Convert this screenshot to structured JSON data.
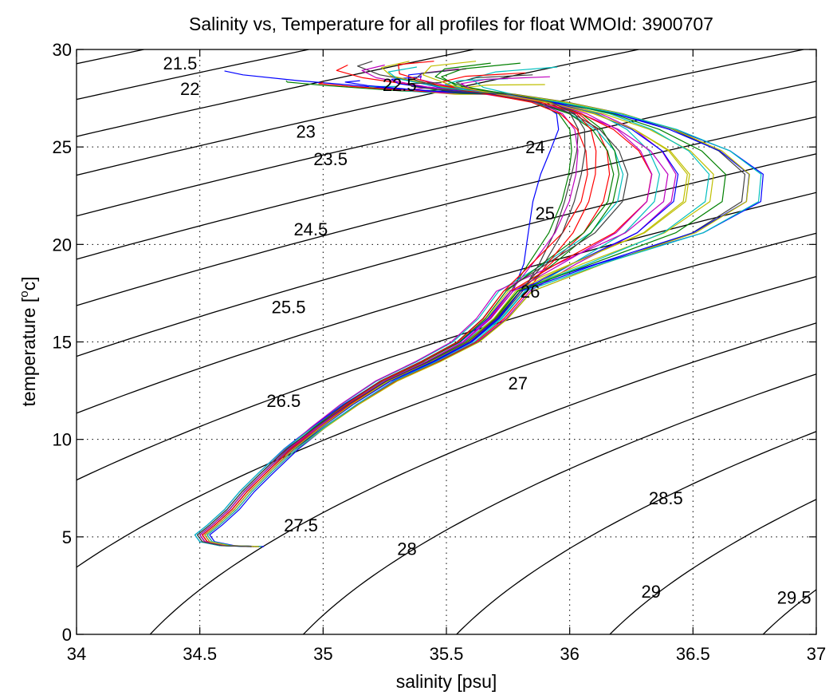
{
  "chart_data": {
    "type": "line",
    "title": "Salinity vs, Temperature for all profiles for float WMOId: 3900707",
    "xlabel": "salinity [psu]",
    "ylabel_main": "temperature [",
    "ylabel_sup": "o",
    "ylabel_end": "c]",
    "xlim": [
      34,
      37
    ],
    "ylim": [
      0,
      30
    ],
    "xticks": [
      34,
      34.5,
      35,
      35.5,
      36,
      36.5,
      37
    ],
    "xtick_labels": [
      "34",
      "34.5",
      "35",
      "35.5",
      "36",
      "36.5",
      "37"
    ],
    "yticks": [
      0,
      5,
      10,
      15,
      20,
      25,
      30
    ],
    "ytick_labels": [
      "0",
      "5",
      "10",
      "15",
      "20",
      "25",
      "30"
    ],
    "grid": true,
    "density_contour_labels": [
      {
        "text": "21.5",
        "s": 34.42,
        "t": 29.3
      },
      {
        "text": "22",
        "s": 34.46,
        "t": 28.0
      },
      {
        "text": "22.5",
        "s": 35.31,
        "t": 28.2
      },
      {
        "text": "23",
        "s": 34.93,
        "t": 25.8
      },
      {
        "text": "23.5",
        "s": 35.03,
        "t": 24.4
      },
      {
        "text": "24",
        "s": 35.86,
        "t": 25.0
      },
      {
        "text": "24.5",
        "s": 34.95,
        "t": 20.8
      },
      {
        "text": "25",
        "s": 35.9,
        "t": 21.6
      },
      {
        "text": "25.5",
        "s": 34.86,
        "t": 16.8
      },
      {
        "text": "26",
        "s": 35.84,
        "t": 17.6
      },
      {
        "text": "26.5",
        "s": 34.84,
        "t": 12.0
      },
      {
        "text": "27",
        "s": 35.79,
        "t": 12.9
      },
      {
        "text": "27.5",
        "s": 34.91,
        "t": 5.6
      },
      {
        "text": "28",
        "s": 35.34,
        "t": 4.4
      },
      {
        "text": "28.5",
        "s": 36.39,
        "t": 7.0
      },
      {
        "text": "29",
        "s": 36.33,
        "t": 2.2
      },
      {
        "text": "29.5",
        "s": 36.91,
        "t": 1.9
      }
    ],
    "profile_colors": [
      "#0000ff",
      "#008000",
      "#ff0000",
      "#00bfbf",
      "#bf00bf",
      "#bfbf00",
      "#404040"
    ],
    "profile_template": [
      [
        34.72,
        4.5
      ],
      [
        34.6,
        4.55
      ],
      [
        34.52,
        4.75
      ],
      [
        34.5,
        5.1
      ],
      [
        34.55,
        5.6
      ],
      [
        34.62,
        6.4
      ],
      [
        34.68,
        7.3
      ],
      [
        34.76,
        8.3
      ],
      [
        34.86,
        9.5
      ],
      [
        34.97,
        10.6
      ],
      [
        35.1,
        11.8
      ],
      [
        35.25,
        13.0
      ],
      [
        35.42,
        14.0
      ],
      [
        35.57,
        15.0
      ],
      [
        35.68,
        16.2
      ],
      [
        35.77,
        17.6
      ],
      [
        35.83,
        19.0
      ],
      [
        35.87,
        20.6
      ],
      [
        35.9,
        22.2
      ],
      [
        35.93,
        23.6
      ],
      [
        35.96,
        24.8
      ],
      [
        35.98,
        25.9
      ],
      [
        35.96,
        26.7
      ],
      [
        35.88,
        27.3
      ],
      [
        35.72,
        27.7
      ],
      [
        35.5,
        28.0
      ],
      [
        35.2,
        28.4
      ],
      [
        34.9,
        28.7
      ],
      [
        34.65,
        28.9
      ]
    ],
    "profiles": [
      {
        "dx_deep": 0.0,
        "dx_mid": 0.0,
        "dx_up": -0.05,
        "dt_top": 0.0,
        "top_s": 34.6
      },
      {
        "dx_deep": 0.02,
        "dx_mid": -0.03,
        "dx_up": 0.1,
        "dt_top": -0.5,
        "top_s": 34.85
      },
      {
        "dx_deep": 0.01,
        "dx_mid": 0.02,
        "dx_up": 0.22,
        "dt_top": 0.3,
        "top_s": 35.1
      },
      {
        "dx_deep": -0.01,
        "dx_mid": -0.05,
        "dx_up": 0.35,
        "dt_top": -0.8,
        "top_s": 35.3
      },
      {
        "dx_deep": 0.03,
        "dx_mid": 0.04,
        "dx_up": 0.48,
        "dt_top": 0.1,
        "top_s": 35.55
      },
      {
        "dx_deep": 0.0,
        "dx_mid": -0.02,
        "dx_up": 0.6,
        "dt_top": -1.2,
        "top_s": 35.7
      },
      {
        "dx_deep": 0.02,
        "dx_mid": 0.06,
        "dx_up": 0.75,
        "dt_top": 0.6,
        "top_s": 35.2
      },
      {
        "dx_deep": -0.02,
        "dx_mid": 0.01,
        "dx_up": 0.82,
        "dt_top": -0.3,
        "top_s": 35.4
      },
      {
        "dx_deep": 0.01,
        "dx_mid": -0.04,
        "dx_up": 0.3,
        "dt_top": 0.4,
        "top_s": 35.8
      },
      {
        "dx_deep": 0.03,
        "dx_mid": 0.03,
        "dx_up": 0.15,
        "dt_top": -0.6,
        "top_s": 35.0
      },
      {
        "dx_deep": 0.0,
        "dx_mid": 0.05,
        "dx_up": 0.4,
        "dt_top": 0.2,
        "top_s": 35.95
      },
      {
        "dx_deep": -0.01,
        "dx_mid": -0.06,
        "dx_up": 0.55,
        "dt_top": -0.9,
        "top_s": 35.6
      },
      {
        "dx_deep": 0.02,
        "dx_mid": 0.0,
        "dx_up": 0.68,
        "dt_top": 0.5,
        "top_s": 35.35
      },
      {
        "dx_deep": 0.01,
        "dx_mid": 0.03,
        "dx_up": 0.05,
        "dt_top": -0.2,
        "top_s": 35.85
      },
      {
        "dx_deep": 0.04,
        "dx_mid": -0.01,
        "dx_up": 0.9,
        "dt_top": 0.0,
        "top_s": 35.5
      },
      {
        "dx_deep": 0.0,
        "dx_mid": 0.02,
        "dx_up": 0.26,
        "dt_top": -1.0,
        "top_s": 35.65
      },
      {
        "dx_deep": 0.02,
        "dx_mid": -0.03,
        "dx_up": 0.45,
        "dt_top": 0.7,
        "top_s": 35.45
      },
      {
        "dx_deep": -0.02,
        "dx_mid": 0.04,
        "dx_up": 0.62,
        "dt_top": -0.4,
        "top_s": 35.75
      },
      {
        "dx_deep": 0.01,
        "dx_mid": -0.02,
        "dx_up": 0.12,
        "dt_top": 0.3,
        "top_s": 35.25
      },
      {
        "dx_deep": 0.03,
        "dx_mid": 0.05,
        "dx_up": 0.78,
        "dt_top": -0.7,
        "top_s": 35.9
      },
      {
        "dx_deep": 0.0,
        "dx_mid": -0.04,
        "dx_up": 0.36,
        "dt_top": 0.1,
        "top_s": 35.58
      },
      {
        "dx_deep": 0.02,
        "dx_mid": 0.01,
        "dx_up": 0.52,
        "dt_top": -0.5,
        "top_s": 35.15
      },
      {
        "dx_deep": -0.01,
        "dx_mid": 0.03,
        "dx_up": 0.7,
        "dt_top": 0.4,
        "top_s": 35.68
      },
      {
        "dx_deep": 0.01,
        "dx_mid": -0.05,
        "dx_up": 0.2,
        "dt_top": -0.1,
        "top_s": 35.82
      },
      {
        "dx_deep": 0.03,
        "dx_mid": 0.02,
        "dx_up": 0.86,
        "dt_top": 0.2,
        "top_s": 35.38
      },
      {
        "dx_deep": 0.0,
        "dx_mid": 0.0,
        "dx_up": 0.42,
        "dt_top": -0.3,
        "top_s": 35.92
      },
      {
        "dx_deep": 0.02,
        "dx_mid": -0.01,
        "dx_up": 0.58,
        "dt_top": 0.6,
        "top_s": 35.62
      },
      {
        "dx_deep": -0.01,
        "dx_mid": 0.04,
        "dx_up": 0.08,
        "dt_top": -0.6,
        "top_s": 35.48
      }
    ]
  }
}
